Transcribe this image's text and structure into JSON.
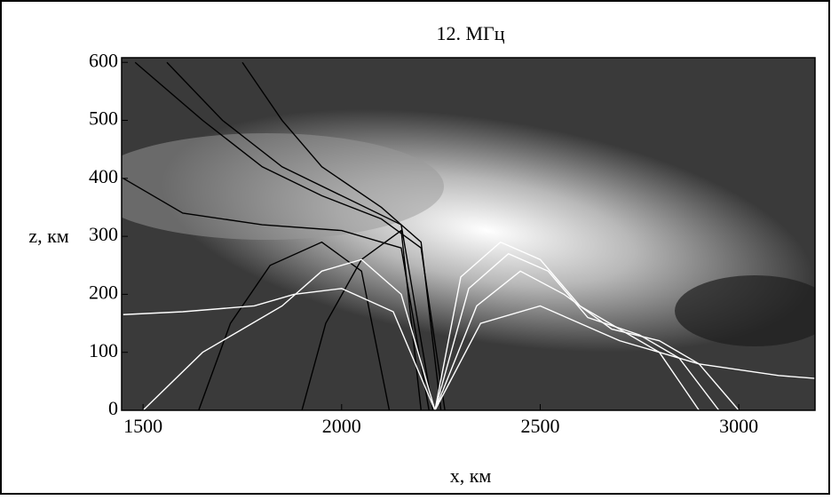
{
  "chart_data": {
    "type": "line",
    "title": "12. МГц",
    "x_label": "x, км",
    "y_label": "z, км",
    "xlim": [
      1446,
      3192
    ],
    "ylim": [
      0,
      608
    ],
    "xticks": [
      1500,
      2000,
      2500,
      3000
    ],
    "yticks": [
      0,
      100,
      200,
      300,
      400,
      500,
      600
    ],
    "series": [
      {
        "color": "#000000",
        "x": [
          1480,
          1650,
          1800,
          1950,
          2100,
          2200,
          2260
        ],
        "values": [
          600,
          500,
          420,
          370,
          330,
          280,
          0
        ]
      },
      {
        "color": "#000000",
        "x": [
          1560,
          1700,
          1850,
          2000,
          2150,
          2230
        ],
        "values": [
          600,
          500,
          420,
          370,
          320,
          0
        ]
      },
      {
        "color": "#000000",
        "x": [
          1450,
          1600,
          1800,
          2000,
          2150,
          2220
        ],
        "values": [
          400,
          340,
          320,
          310,
          280,
          0
        ]
      },
      {
        "color": "#000000",
        "x": [
          1750,
          1850,
          1950,
          2100,
          2200,
          2250
        ],
        "values": [
          600,
          500,
          420,
          350,
          290,
          0
        ]
      },
      {
        "color": "#000000",
        "x": [
          1640,
          1720,
          1820,
          1950,
          2050,
          2120
        ],
        "values": [
          0,
          150,
          250,
          290,
          240,
          0
        ]
      },
      {
        "color": "#000000",
        "x": [
          1900,
          1960,
          2050,
          2150,
          2200
        ],
        "values": [
          0,
          150,
          260,
          310,
          0
        ]
      },
      {
        "color": "#ffffff",
        "x": [
          2235,
          2300,
          2400,
          2500,
          2600,
          2700,
          2800,
          2900
        ],
        "values": [
          0,
          230,
          290,
          260,
          180,
          140,
          100,
          0
        ]
      },
      {
        "color": "#ffffff",
        "x": [
          2235,
          2320,
          2420,
          2520,
          2620,
          2750,
          2850,
          2950
        ],
        "values": [
          0,
          210,
          270,
          240,
          160,
          130,
          90,
          0
        ]
      },
      {
        "color": "#ffffff",
        "x": [
          2235,
          2340,
          2450,
          2560,
          2680,
          2800,
          2900,
          3000
        ],
        "values": [
          0,
          180,
          240,
          200,
          140,
          120,
          80,
          0
        ]
      },
      {
        "color": "#ffffff",
        "x": [
          2235,
          2150,
          2050,
          1950,
          1850,
          1750,
          1650,
          1500
        ],
        "values": [
          0,
          200,
          260,
          240,
          180,
          140,
          100,
          0
        ]
      },
      {
        "color": "#ffffff",
        "x": [
          2235,
          2130,
          2000,
          1880,
          1780,
          1600,
          1450
        ],
        "values": [
          0,
          170,
          210,
          200,
          180,
          170,
          165
        ]
      },
      {
        "color": "#ffffff",
        "x": [
          2235,
          2350,
          2500,
          2700,
          2900,
          3100,
          3192
        ],
        "values": [
          0,
          150,
          180,
          120,
          80,
          60,
          55
        ]
      }
    ]
  }
}
